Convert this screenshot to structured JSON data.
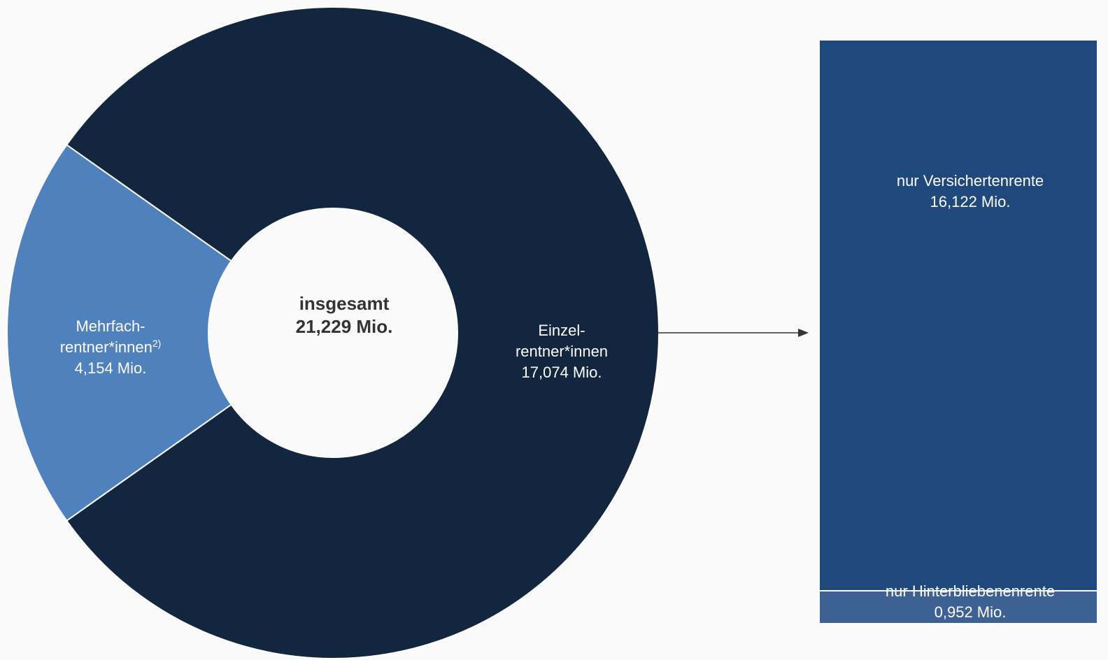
{
  "colors": {
    "dark_navy": "#12263f",
    "light_blue": "#4f81bd",
    "bar_dark": "#1f497d",
    "bar_light": "#3d6192",
    "center_text": "#333333",
    "arrow": "#333333"
  },
  "chart_data": [
    {
      "type": "pie",
      "variant": "donut",
      "center_label": {
        "line1": "insgesamt",
        "line2": "21,229 Mio."
      },
      "total": 21.229,
      "unit": "Mio.",
      "slices": [
        {
          "key": "einzel",
          "line1": "Einzel-",
          "line2": "rentner*innen",
          "value_label": "17,074 Mio.",
          "value": 17.074,
          "color": "#12263f"
        },
        {
          "key": "mehrfach",
          "line1": "Mehrfach-",
          "line2": "rentner*innen",
          "footnote": "2)",
          "value_label": "4,154 Mio.",
          "value": 4.154,
          "color": "#4f81bd"
        }
      ]
    },
    {
      "type": "bar",
      "variant": "stacked-100",
      "total": 17.074,
      "unit": "Mio.",
      "segments": [
        {
          "key": "versicherten",
          "label": "nur Versichertenrente",
          "value_label": "16,122 Mio.",
          "value": 16.122,
          "color": "#1f497d"
        },
        {
          "key": "hinterbliebenen",
          "label": "nur Hinterbliebenenrente",
          "value_label": "0,952 Mio.",
          "value": 0.952,
          "color": "#3d6192"
        }
      ]
    }
  ]
}
